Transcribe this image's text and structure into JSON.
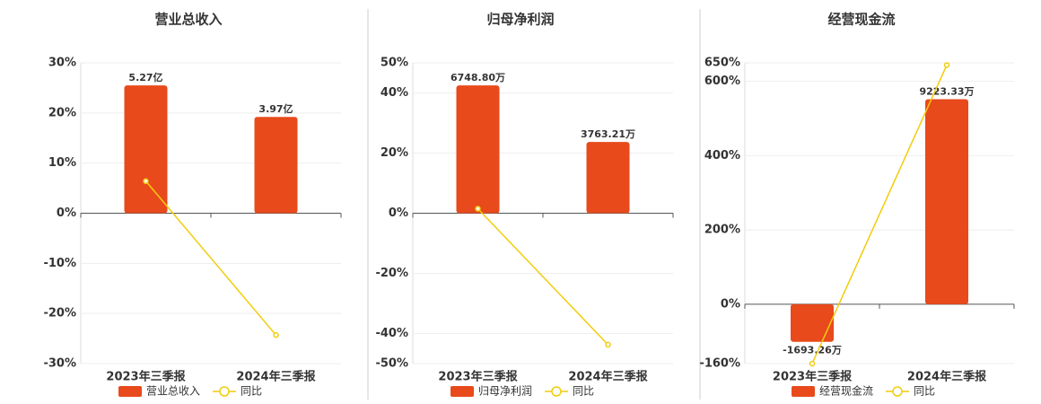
{
  "chart_data": [
    {
      "type": "bar_line",
      "title": "营业总收入",
      "categories": [
        "2023年三季报",
        "2024年三季报"
      ],
      "series": [
        {
          "name": "营业总收入",
          "color": "#e84a1c",
          "values": [
            5.27,
            3.97
          ],
          "value_labels": [
            "5.27亿",
            "3.97亿"
          ],
          "axis": "y2"
        },
        {
          "name": "同比",
          "color": "#f2cc0c",
          "values": [
            6.4,
            -24.3
          ]
        }
      ],
      "ylim": [
        -30,
        30
      ],
      "yticks": [
        {
          "value": -30,
          "label": "-30%"
        },
        {
          "value": -20,
          "label": "-20%"
        },
        {
          "value": -10,
          "label": "-10%"
        },
        {
          "value": 0,
          "label": "0%"
        },
        {
          "value": 10,
          "label": "10%"
        },
        {
          "value": 20,
          "label": "20%"
        },
        {
          "value": 30,
          "label": "30%"
        }
      ],
      "y2lim": [
        -6.2,
        6.2
      ],
      "grid": true
    },
    {
      "type": "bar_line",
      "title": "归母净利润",
      "categories": [
        "2023年三季报",
        "2024年三季报"
      ],
      "series": [
        {
          "name": "归母净利润",
          "color": "#e84a1c",
          "values": [
            6748.8,
            3763.21
          ],
          "value_labels": [
            "6748.80万",
            "3763.21万"
          ],
          "axis": "y2"
        },
        {
          "name": "同比",
          "color": "#f2cc0c",
          "values": [
            1.5,
            -43.7
          ]
        }
      ],
      "ylim": [
        -50,
        50
      ],
      "yticks": [
        {
          "value": -50,
          "label": "-50%"
        },
        {
          "value": -40,
          "label": "-40%"
        },
        {
          "value": -20,
          "label": "-20%"
        },
        {
          "value": 0,
          "label": "0%"
        },
        {
          "value": 20,
          "label": "20%"
        },
        {
          "value": 40,
          "label": "40%"
        },
        {
          "value": 50,
          "label": "50%"
        }
      ],
      "y2lim": [
        -7940,
        7940
      ],
      "grid": true
    },
    {
      "type": "bar_line",
      "title": "经营现金流",
      "categories": [
        "2023年三季报",
        "2024年三季报"
      ],
      "series": [
        {
          "name": "经营现金流",
          "color": "#e84a1c",
          "values": [
            -1693.26,
            9223.33
          ],
          "value_labels": [
            "-1693.26万",
            "9223.33万"
          ],
          "axis": "y2"
        },
        {
          "name": "同比",
          "color": "#f2cc0c",
          "values": [
            -160,
            644
          ]
        }
      ],
      "ylim": [
        -160,
        650
      ],
      "yticks": [
        {
          "value": -160,
          "label": "-160%"
        },
        {
          "value": 0,
          "label": "0%"
        },
        {
          "value": 200,
          "label": "200%"
        },
        {
          "value": 400,
          "label": "400%"
        },
        {
          "value": 600,
          "label": "600%"
        },
        {
          "value": 650,
          "label": "650%"
        }
      ],
      "y2lim": [
        -2674,
        10861
      ],
      "grid": true
    }
  ]
}
